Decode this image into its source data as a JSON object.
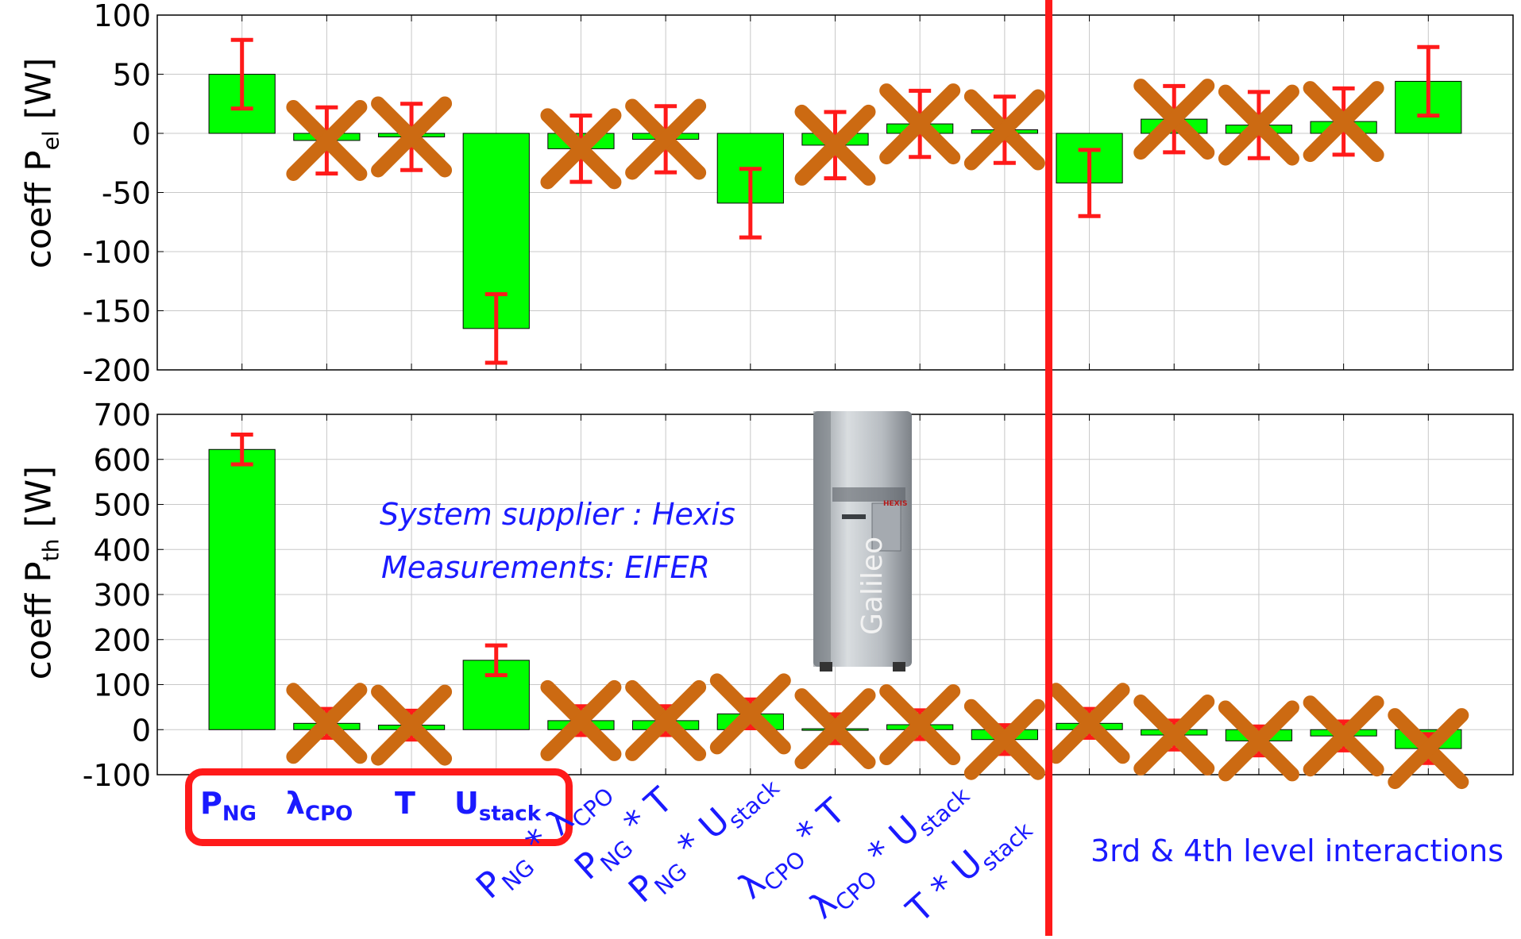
{
  "chart_data": [
    {
      "type": "bar",
      "ylabel": "coeff P",
      "ylabel_sub": "el",
      "ylabel_unit": " [W]",
      "ylim": [
        -200,
        100
      ],
      "yticks": [
        100,
        50,
        0,
        -50,
        -100,
        -150,
        -200
      ],
      "grid": true,
      "bar_color": "#00ff00",
      "error_color": "#ff1a1a",
      "values": [
        50,
        -6,
        -3,
        -165,
        -13,
        -5,
        -59,
        -10,
        8,
        3,
        -42,
        12,
        7,
        10,
        44
      ],
      "errors": [
        29,
        28,
        28,
        29,
        28,
        28,
        29,
        28,
        28,
        28,
        28,
        28,
        28,
        28,
        29
      ],
      "crossed_out": [
        false,
        true,
        true,
        false,
        true,
        true,
        false,
        true,
        true,
        true,
        false,
        true,
        true,
        true,
        false
      ]
    },
    {
      "type": "bar",
      "ylabel": "coeff P",
      "ylabel_sub": "th",
      "ylabel_unit": " [W]",
      "ylim": [
        -100,
        700
      ],
      "yticks": [
        700,
        600,
        500,
        400,
        300,
        200,
        100,
        0,
        -100
      ],
      "grid": true,
      "bar_color": "#00ff00",
      "error_color": "#ff1a1a",
      "values": [
        622,
        14,
        10,
        154,
        20,
        20,
        35,
        2,
        11,
        -22,
        14,
        -12,
        -25,
        -14,
        -42
      ],
      "errors": [
        33,
        32,
        32,
        33,
        32,
        32,
        32,
        32,
        32,
        32,
        32,
        32,
        32,
        32,
        32
      ],
      "crossed_out": [
        false,
        true,
        true,
        false,
        true,
        true,
        true,
        true,
        true,
        true,
        true,
        true,
        true,
        true,
        true
      ]
    }
  ],
  "annotations": {
    "supplier": "System supplier : Hexis",
    "measurements": "Measurements: EIFER",
    "device_name": "Galileo",
    "device_badge": "HEXIS",
    "higher_interactions": "3rd & 4th level interactions"
  },
  "factor_labels": {
    "p": "P",
    "ng": "NG",
    "lambda": "λ",
    "cpo": "CPO",
    "t": "T",
    "u": "U",
    "stack": "stack",
    "times": " * "
  },
  "colors": {
    "cross": "#cc6a12",
    "divider": "#ff1a1a",
    "label_blue": "#1a1aff"
  }
}
